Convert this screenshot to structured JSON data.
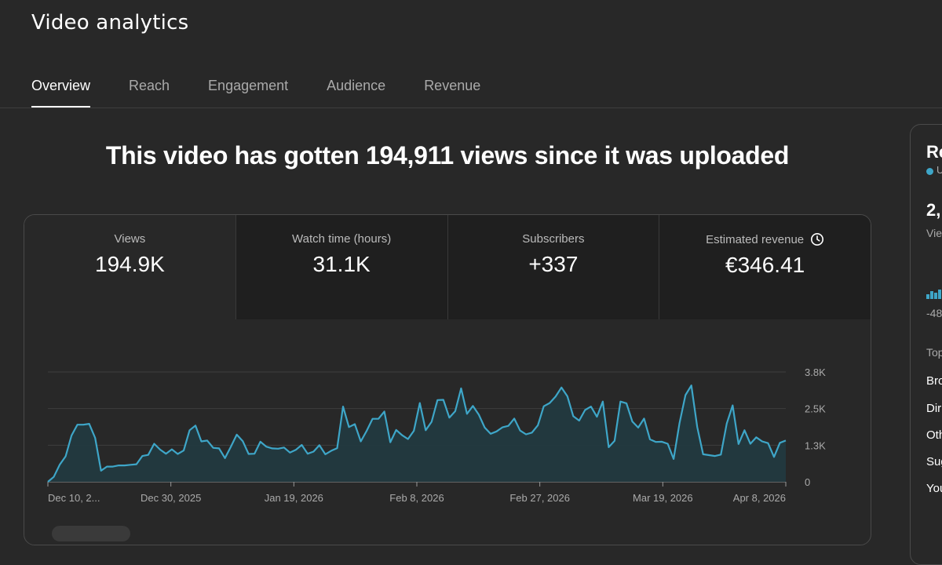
{
  "header": {
    "title": "Video analytics"
  },
  "tabs": [
    {
      "label": "Overview",
      "active": true
    },
    {
      "label": "Reach",
      "active": false
    },
    {
      "label": "Engagement",
      "active": false
    },
    {
      "label": "Audience",
      "active": false
    },
    {
      "label": "Revenue",
      "active": false
    }
  ],
  "headline": "This video has gotten 194,911 views since it was uploaded",
  "metrics": [
    {
      "label": "Views",
      "value": "194.9K"
    },
    {
      "label": "Watch time (hours)",
      "value": "31.1K"
    },
    {
      "label": "Subscribers",
      "value": "+337"
    },
    {
      "label": "Estimated revenue",
      "value": "€346.41",
      "icon": "clock-icon"
    }
  ],
  "side_panel": {
    "title": "Re",
    "legend": "U",
    "value": "2,",
    "value_label": "Vie",
    "change": "-48",
    "section": "Top",
    "sources": [
      "Bro",
      "Dir",
      "Oth",
      "Sug",
      "You"
    ]
  },
  "colors": {
    "accent": "#3ea6c8",
    "background": "#282828",
    "tile": "#1f1f1f"
  },
  "chart_data": {
    "type": "area",
    "title": "",
    "xlabel": "",
    "ylabel": "",
    "x_tick_labels": [
      "Dec 10, 2...",
      "Dec 30, 2025",
      "Jan 19, 2026",
      "Feb 8, 2026",
      "Feb 27, 2026",
      "Mar 19, 2026",
      "Apr 8, 2026"
    ],
    "y_tick_labels": [
      "0",
      "1.3K",
      "2.5K",
      "3.8K"
    ],
    "ylim": [
      0,
      3750
    ],
    "grid": true,
    "series": [
      {
        "values": [
          0,
          170,
          580,
          870,
          1580,
          1950,
          1950,
          1980,
          1500,
          380,
          520,
          520,
          560,
          560,
          580,
          600,
          880,
          920,
          1300,
          1100,
          960,
          1110,
          950,
          1070,
          1760,
          1920,
          1380,
          1410,
          1160,
          1140,
          810,
          1200,
          1610,
          1390,
          950,
          960,
          1370,
          1200,
          1140,
          1130,
          1170,
          1000,
          1090,
          1260,
          960,
          1030,
          1250,
          940,
          1060,
          1150,
          2570,
          1870,
          1970,
          1380,
          1740,
          2150,
          2150,
          2400,
          1350,
          1770,
          1590,
          1460,
          1740,
          2690,
          1760,
          2050,
          2790,
          2800,
          2190,
          2410,
          3190,
          2320,
          2590,
          2290,
          1850,
          1640,
          1720,
          1860,
          1910,
          2160,
          1750,
          1620,
          1680,
          1930,
          2580,
          2690,
          2910,
          3220,
          2920,
          2240,
          2090,
          2450,
          2570,
          2220,
          2740,
          1180,
          1400,
          2740,
          2680,
          2060,
          1850,
          2160,
          1450,
          1360,
          1370,
          1300,
          780,
          2000,
          2960,
          3290,
          1870,
          940,
          910,
          880,
          930,
          1990,
          2610,
          1290,
          1760,
          1300,
          1520,
          1380,
          1320,
          850,
          1330,
          1410
        ]
      }
    ]
  }
}
